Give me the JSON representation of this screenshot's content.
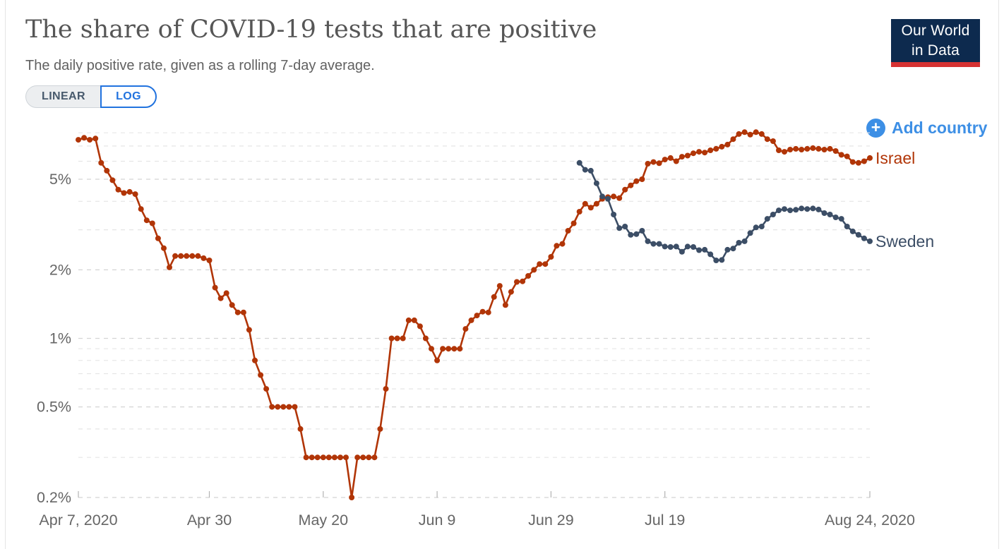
{
  "page": {
    "title": "The share of COVID-19 tests that are positive",
    "subtitle": "The daily positive rate, given as a rolling 7-day average.",
    "logo": {
      "line1": "Our World",
      "line2": "in Data"
    },
    "scale_toggle": {
      "linear_label": "LINEAR",
      "log_label": "LOG",
      "selected": "LOG"
    },
    "add_country": {
      "label": "Add country",
      "plus_glyph": "+"
    }
  },
  "colors": {
    "israel_line": "#b13507",
    "sweden_line": "#3c4e66",
    "accent_blue": "#3d8fe5",
    "log_button_blue": "#2173df",
    "linear_text": "#47596c",
    "logo_navy": "#0d2a4e",
    "logo_red": "#d63232",
    "axis_text": "#666666",
    "gridline_major": "#d4d4d4",
    "gridline_minor": "#e6e6e6"
  },
  "chart_data": {
    "type": "line",
    "title": "The share of COVID-19 tests that are positive",
    "subtitle": "The daily positive rate, given as a rolling 7-day average.",
    "scale": "log",
    "unit": "%",
    "grid": true,
    "legend_position": "end-of-line",
    "y_axis": {
      "ticks": [
        {
          "label": "5%",
          "value": 5
        },
        {
          "label": "2%",
          "value": 2
        },
        {
          "label": "1%",
          "value": 1
        },
        {
          "label": "0.5%",
          "value": 0.5
        },
        {
          "label": "0.2%",
          "value": 0.2
        }
      ],
      "gridlines": [
        0.2,
        0.3,
        0.4,
        0.5,
        0.6,
        0.7,
        0.8,
        0.9,
        1,
        2,
        3,
        4,
        5,
        6,
        7,
        8
      ],
      "range": [
        0.2,
        8.6
      ]
    },
    "x_axis": {
      "start_date": "2020-04-07",
      "end_date": "2020-08-24",
      "total_days": 139,
      "ticks": [
        {
          "label": "Apr 7, 2020",
          "day": 0
        },
        {
          "label": "Apr 30",
          "day": 23
        },
        {
          "label": "May 20",
          "day": 43
        },
        {
          "label": "Jun 9",
          "day": 63
        },
        {
          "label": "Jun 29",
          "day": 83
        },
        {
          "label": "Jul 19",
          "day": 103
        },
        {
          "label": "Aug 24, 2020",
          "day": 139
        }
      ]
    },
    "series": [
      {
        "name": "Israel",
        "color": "#b13507",
        "start_day": 0,
        "start_date": "2020-04-07",
        "cadence": "daily",
        "values": [
          7.45,
          7.6,
          7.45,
          7.55,
          5.9,
          5.45,
          4.95,
          4.5,
          4.35,
          4.4,
          4.3,
          3.7,
          3.3,
          3.2,
          2.75,
          2.49,
          2.05,
          2.3,
          2.3,
          2.3,
          2.3,
          2.3,
          2.25,
          2.2,
          1.67,
          1.5,
          1.58,
          1.4,
          1.3,
          1.3,
          1.09,
          0.8,
          0.69,
          0.6,
          0.5,
          0.5,
          0.5,
          0.5,
          0.5,
          0.4,
          0.3,
          0.3,
          0.3,
          0.3,
          0.3,
          0.3,
          0.3,
          0.3,
          0.2,
          0.3,
          0.3,
          0.3,
          0.3,
          0.4,
          0.6,
          1.0,
          1.0,
          1.0,
          1.2,
          1.2,
          1.13,
          1.0,
          0.9,
          0.8,
          0.9,
          0.9,
          0.9,
          0.9,
          1.1,
          1.2,
          1.26,
          1.31,
          1.3,
          1.52,
          1.7,
          1.4,
          1.6,
          1.77,
          1.78,
          1.88,
          2.0,
          2.12,
          2.12,
          2.28,
          2.55,
          2.6,
          2.97,
          3.2,
          3.6,
          3.9,
          3.75,
          3.9,
          4.1,
          4.17,
          4.2,
          4.13,
          4.5,
          4.7,
          4.9,
          5.0,
          5.85,
          5.95,
          5.88,
          6.1,
          6.2,
          6.0,
          6.28,
          6.35,
          6.5,
          6.6,
          6.55,
          6.7,
          6.8,
          6.95,
          7.1,
          7.5,
          7.9,
          8.05,
          7.85,
          8.05,
          7.9,
          7.5,
          7.35,
          6.7,
          6.6,
          6.75,
          6.8,
          6.75,
          6.8,
          6.85,
          6.8,
          6.75,
          6.8,
          6.65,
          6.4,
          6.3,
          5.95,
          5.9,
          6.0,
          6.2
        ]
      },
      {
        "name": "Sweden",
        "color": "#3c4e66",
        "start_day": 88,
        "start_date": "2020-07-04",
        "cadence": "daily",
        "values": [
          5.9,
          5.5,
          5.45,
          4.8,
          4.2,
          4.1,
          3.5,
          3.05,
          3.1,
          2.85,
          2.87,
          2.97,
          2.67,
          2.6,
          2.6,
          2.53,
          2.52,
          2.53,
          2.4,
          2.53,
          2.52,
          2.44,
          2.45,
          2.34,
          2.2,
          2.21,
          2.45,
          2.48,
          2.63,
          2.67,
          2.9,
          3.07,
          3.1,
          3.35,
          3.5,
          3.65,
          3.7,
          3.65,
          3.67,
          3.72,
          3.7,
          3.72,
          3.68,
          3.55,
          3.5,
          3.4,
          3.35,
          3.1,
          2.95,
          2.85,
          2.75,
          2.67
        ]
      }
    ]
  }
}
